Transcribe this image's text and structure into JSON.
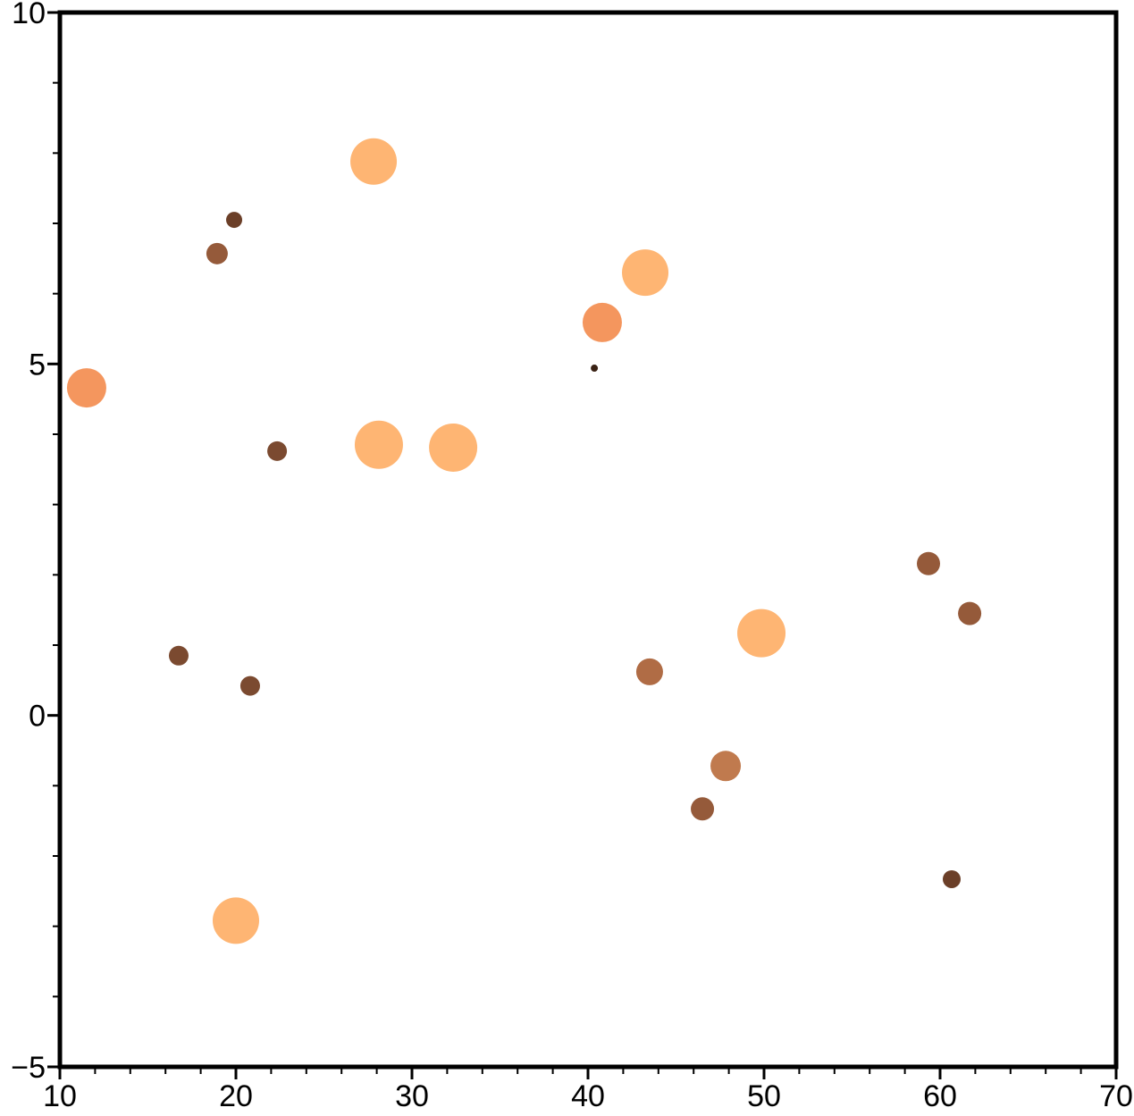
{
  "chart_data": {
    "type": "scatter",
    "x": [
      11.52,
      18.93,
      19.9,
      27.82,
      22.34,
      28.12,
      32.34,
      16.75,
      20.81,
      20.0,
      40.81,
      40.36,
      43.25,
      43.5,
      49.85,
      47.82,
      46.5,
      59.34,
      61.68,
      60.66
    ],
    "values": [
      4.66,
      6.57,
      7.05,
      7.88,
      3.76,
      3.85,
      3.81,
      0.85,
      0.42,
      -2.92,
      5.59,
      4.94,
      6.3,
      0.62,
      1.17,
      -0.72,
      -1.33,
      2.16,
      1.45,
      -2.33
    ],
    "sizes": [
      22,
      12,
      9,
      26,
      11,
      27,
      27,
      11,
      11,
      26,
      22,
      4,
      26,
      15,
      27,
      17,
      13,
      13,
      13,
      10
    ],
    "colors": [
      "#f4965e",
      "#955a3a",
      "#6b3f28",
      "#feb573",
      "#7b4a30",
      "#feb573",
      "#feb573",
      "#7b4a30",
      "#7b4a30",
      "#feb573",
      "#f4965e",
      "#3a2214",
      "#feb573",
      "#b06c45",
      "#feb573",
      "#c07a4e",
      "#955a3a",
      "#955a3a",
      "#955a3a",
      "#6b3f28"
    ],
    "xlim": [
      10,
      70
    ],
    "ylim": [
      -5,
      10
    ],
    "xticks": [
      10,
      20,
      30,
      40,
      50,
      60,
      70
    ],
    "yticks": [
      {
        "value": -5,
        "label": "−5"
      },
      0,
      5,
      10
    ],
    "xminor_step": 2,
    "yminor_step": 1
  }
}
